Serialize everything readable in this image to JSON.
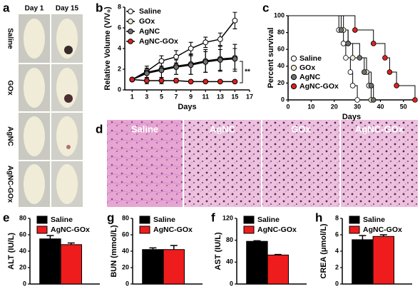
{
  "photo_panel": {
    "label": "a",
    "columns": [
      "Day 1",
      "Day 15"
    ],
    "rows": [
      "Saline",
      "GOx",
      "AgNC",
      "AgNC-GOx"
    ]
  },
  "histology_panel": {
    "label": "d",
    "titles": [
      "Saline",
      "AgNC",
      "GOx",
      "AgNC-GOx"
    ]
  },
  "chart_data": [
    {
      "type": "line",
      "panel_label": "b",
      "xlabel": "Days",
      "ylabel": "Relative Volume (V/V₀)",
      "x": [
        1,
        3,
        5,
        7,
        9,
        11,
        13,
        15
      ],
      "xlim": [
        0,
        17
      ],
      "xticks": [
        1,
        3,
        5,
        7,
        9,
        11,
        13,
        15,
        17
      ],
      "ylim": [
        0,
        8
      ],
      "yticks": [
        0,
        2,
        4,
        6,
        8
      ],
      "annotation": "**",
      "legend": "upper left",
      "series": [
        {
          "name": "Saline",
          "color": "#ffffff",
          "values": [
            1,
            1.8,
            2.8,
            3.2,
            4.0,
            4.6,
            4.9,
            6.7
          ],
          "errors": [
            0,
            0.3,
            0.5,
            0.6,
            0.6,
            0.5,
            0.6,
            0.8
          ]
        },
        {
          "name": "GOx",
          "color": "#f3ecd2",
          "values": [
            1,
            1.7,
            2.0,
            2.3,
            2.5,
            2.8,
            3.0,
            3.1
          ],
          "errors": [
            0,
            0.6,
            0.8,
            0.8,
            1.0,
            1.1,
            1.2,
            1.3
          ]
        },
        {
          "name": "AgNC",
          "color": "#707070",
          "values": [
            1,
            1.6,
            1.9,
            2.2,
            2.4,
            2.7,
            2.9,
            3.0
          ],
          "errors": [
            0,
            0.5,
            0.7,
            0.7,
            0.9,
            1.0,
            1.0,
            1.0
          ]
        },
        {
          "name": "AgNC-GOx",
          "color": "#e02020",
          "values": [
            1,
            0.9,
            0.9,
            0.9,
            0.8,
            0.8,
            0.8,
            0.8
          ],
          "errors": [
            0,
            0.3,
            0.3,
            0.2,
            0.1,
            0.1,
            0.1,
            0.1
          ]
        }
      ]
    },
    {
      "type": "step",
      "panel_label": "c",
      "xlabel": "Days",
      "ylabel": "Percent survival",
      "xlim": [
        0,
        55
      ],
      "xticks": [
        0,
        10,
        20,
        30,
        40,
        50
      ],
      "ylim": [
        0,
        100
      ],
      "yticks": [
        0,
        20,
        40,
        60,
        80,
        100
      ],
      "legend": "lower left",
      "series": [
        {
          "name": "Saline",
          "color": "#ffffff",
          "x": [
            0,
            22,
            24,
            25,
            27,
            28,
            30
          ],
          "values": [
            100,
            83,
            67,
            50,
            33,
            17,
            0
          ]
        },
        {
          "name": "GOx",
          "color": "#f3ecd2",
          "x": [
            0,
            24,
            26,
            28,
            34,
            35,
            36
          ],
          "values": [
            100,
            83,
            67,
            50,
            33,
            17,
            0
          ]
        },
        {
          "name": "AgNC",
          "color": "#707070",
          "x": [
            0,
            23,
            26,
            31,
            33,
            36,
            37
          ],
          "values": [
            100,
            83,
            67,
            50,
            33,
            17,
            0
          ]
        },
        {
          "name": "AgNC-GOx",
          "color": "#e02020",
          "x": [
            0,
            29,
            37,
            42,
            44,
            47,
            55
          ],
          "values": [
            100,
            83,
            67,
            50,
            33,
            17,
            0
          ]
        }
      ]
    },
    {
      "type": "bar",
      "panel_label": "e",
      "ylabel": "ALT (IU/L)",
      "categories": [
        null
      ],
      "ylim": [
        0,
        80
      ],
      "yticks": [
        0,
        20,
        40,
        60,
        80
      ],
      "legend": "upper left",
      "series": [
        {
          "name": "Saline",
          "color": "#000000",
          "values": [
            55
          ],
          "errors": [
            4
          ]
        },
        {
          "name": "AgNC-GOx",
          "color": "#ee1c1c",
          "values": [
            48
          ],
          "errors": [
            2
          ]
        }
      ]
    },
    {
      "type": "bar",
      "panel_label": "g",
      "ylabel": "BUN (mmol/L)",
      "categories": [
        null
      ],
      "ylim": [
        0,
        80
      ],
      "yticks": [
        0,
        20,
        40,
        60,
        80
      ],
      "legend": "upper left",
      "series": [
        {
          "name": "Saline",
          "color": "#000000",
          "values": [
            42
          ],
          "errors": [
            2
          ]
        },
        {
          "name": "AgNC-GOx",
          "color": "#ee1c1c",
          "values": [
            42
          ],
          "errors": [
            5
          ]
        }
      ]
    },
    {
      "type": "bar",
      "panel_label": "f",
      "ylabel": "AST (IU/L)",
      "categories": [
        null
      ],
      "ylim": [
        0,
        120
      ],
      "yticks": [
        0,
        40,
        80,
        120
      ],
      "legend": "upper left",
      "series": [
        {
          "name": "Saline",
          "color": "#000000",
          "values": [
            78
          ],
          "errors": [
            1
          ]
        },
        {
          "name": "AgNC-GOx",
          "color": "#ee1c1c",
          "values": [
            53
          ],
          "errors": [
            1
          ]
        }
      ]
    },
    {
      "type": "bar",
      "panel_label": "h",
      "ylabel": "CREA (μmol/L)",
      "categories": [
        null
      ],
      "ylim": [
        0,
        8
      ],
      "yticks": [
        0,
        2,
        4,
        6,
        8
      ],
      "legend": "upper left",
      "series": [
        {
          "name": "Saline",
          "color": "#000000",
          "values": [
            5.4
          ],
          "errors": [
            0.5
          ]
        },
        {
          "name": "AgNC-GOx",
          "color": "#ee1c1c",
          "values": [
            5.8
          ],
          "errors": [
            0.2
          ]
        }
      ]
    }
  ]
}
